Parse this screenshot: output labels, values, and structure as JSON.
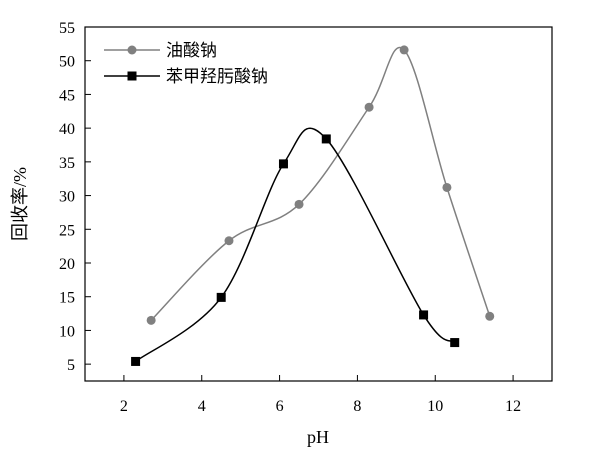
{
  "chart_data": {
    "type": "line",
    "title": "",
    "xlabel": "pH",
    "ylabel": "回收率/%",
    "xlim": [
      1,
      13
    ],
    "ylim": [
      2.5,
      55
    ],
    "xticks": [
      2,
      4,
      6,
      8,
      10,
      12
    ],
    "yticks": [
      5,
      10,
      15,
      20,
      25,
      30,
      35,
      40,
      45,
      50,
      55
    ],
    "grid": false,
    "legend_position": "top-left",
    "series": [
      {
        "name": "油酸钠",
        "marker": "circle",
        "color": "#808080",
        "x": [
          2.7,
          4.7,
          6.5,
          8.3,
          9.2,
          10.3,
          11.4
        ],
        "y": [
          11.5,
          23.3,
          28.7,
          43.1,
          51.6,
          31.2,
          12.1
        ]
      },
      {
        "name": "苯甲羟肟酸钠",
        "marker": "square",
        "color": "#000000",
        "x": [
          2.3,
          4.5,
          6.1,
          7.2,
          9.7,
          10.5
        ],
        "y": [
          5.4,
          14.9,
          34.7,
          38.4,
          12.3,
          8.2
        ]
      }
    ]
  }
}
